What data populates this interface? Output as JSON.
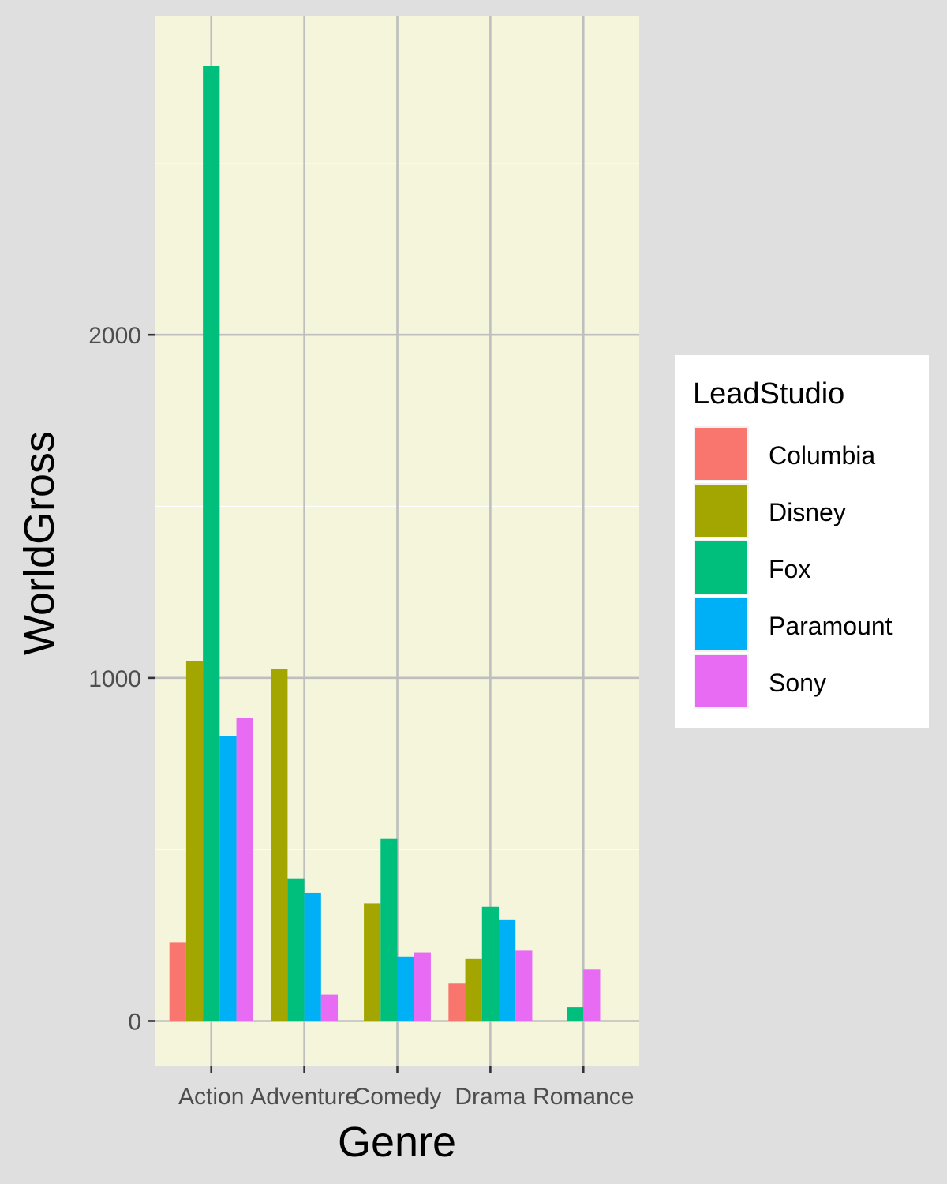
{
  "chart_data": {
    "type": "bar",
    "xlabel": "Genre",
    "ylabel": "WorldGross",
    "categories": [
      "Action",
      "Adventure",
      "Comedy",
      "Drama",
      "Romance"
    ],
    "ylim": [
      -130,
      2930
    ],
    "yticks": [
      0,
      1000,
      2000
    ],
    "y_tick_labels": [
      "0",
      "1000",
      "2000"
    ],
    "grid": true,
    "legend": {
      "title": "LeadStudio",
      "position": "right",
      "entries": [
        "Columbia",
        "Disney",
        "Fox",
        "Paramount",
        "Sony"
      ]
    },
    "colors": {
      "Columbia": "#F8766D",
      "Disney": "#A3A500",
      "Fox": "#00BF7D",
      "Paramount": "#00B0F6",
      "Sony": "#E76BF3",
      "panel_background": "#F5F5DC",
      "plot_background": "#DFDFDF",
      "grid": "#BEBEBE"
    },
    "series": [
      {
        "name": "Columbia",
        "values": [
          228,
          null,
          null,
          111,
          null
        ]
      },
      {
        "name": "Disney",
        "values": [
          1048,
          1025,
          343,
          181,
          null
        ]
      },
      {
        "name": "Fox",
        "values": [
          2784,
          416,
          531,
          333,
          40
        ]
      },
      {
        "name": "Paramount",
        "values": [
          830,
          374,
          188,
          296,
          null
        ]
      },
      {
        "name": "Sony",
        "values": [
          883,
          78,
          200,
          205,
          150
        ]
      }
    ],
    "bars_per_category": [
      5,
      4,
      4,
      5,
      2
    ]
  }
}
